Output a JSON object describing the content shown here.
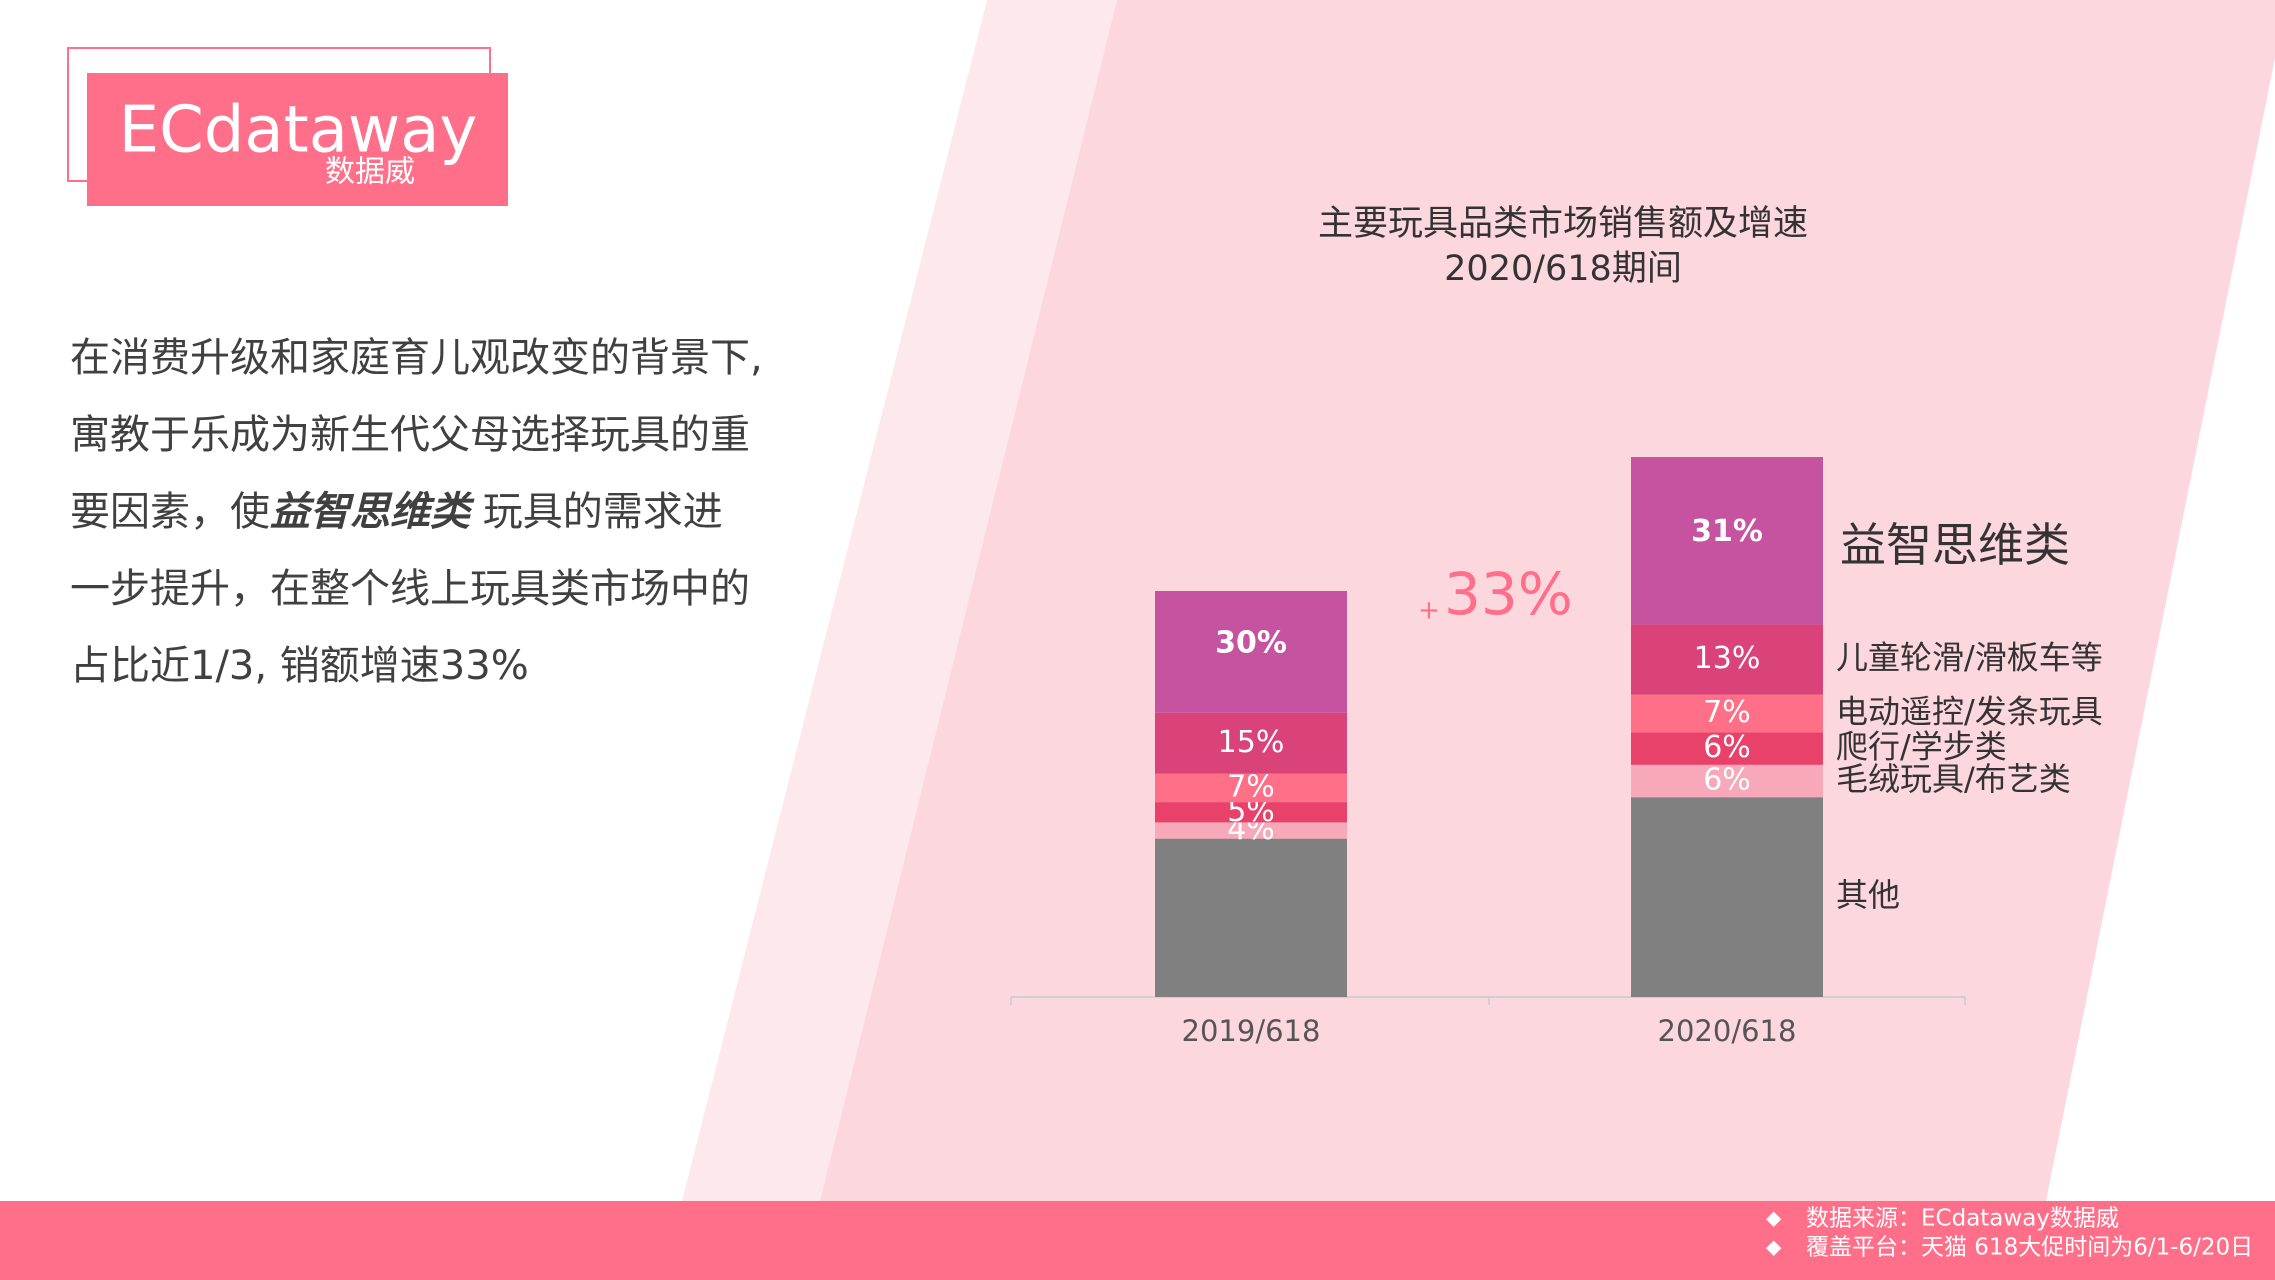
{
  "logo": {
    "name": "ECdataway",
    "subname": "数据威"
  },
  "body": {
    "lines": [
      [
        "在消费升级和家庭育儿观改变的背景下,"
      ],
      [
        "寓教于乐成为新生代父母选择玩具的重"
      ],
      [
        "要因素，使",
        "益智思维类",
        " 玩具的需求进"
      ],
      [
        "一步提升，在整个线上玩具类市场中的"
      ],
      [
        "占比近1/3, 销额增速33%"
      ]
    ]
  },
  "footer": [
    "数据来源：ECdataway数据威",
    "覆盖平台：天猫  618大促时间为6/1-6/20日"
  ],
  "chart_data": {
    "type": "stacked_bar",
    "title": "主要玩具品类市场销售额及增速",
    "subtitle": "2020/618期间",
    "categories": [
      "2019/618",
      "2020/618"
    ],
    "series": [
      {
        "name": "其他",
        "color": "#808080",
        "values": [
          39,
          37
        ],
        "value_labels": [
          null,
          null
        ]
      },
      {
        "name": "毛绒玩具/布艺类",
        "color": "#f7a9b9",
        "values": [
          4,
          6
        ],
        "value_labels": [
          "4%",
          "6%"
        ]
      },
      {
        "name": "爬行/学步类",
        "color": "#e8426a",
        "values": [
          5,
          6
        ],
        "value_labels": [
          "5%",
          "6%"
        ]
      },
      {
        "name": "电动遥控/发条玩具",
        "color": "#ff7088",
        "values": [
          7,
          7
        ],
        "value_labels": [
          "7%",
          "7%"
        ]
      },
      {
        "name": "儿童轮滑/滑板车等",
        "color": "#d9437a",
        "values": [
          15,
          13
        ],
        "value_labels": [
          "15%",
          "13%"
        ]
      },
      {
        "name": "益智思维类",
        "color": "#c5539f",
        "values": [
          30,
          31
        ],
        "value_labels": [
          "30%",
          "31%"
        ]
      }
    ],
    "annotation": {
      "prefix": "+",
      "value": 33,
      "label": "33%"
    }
  }
}
